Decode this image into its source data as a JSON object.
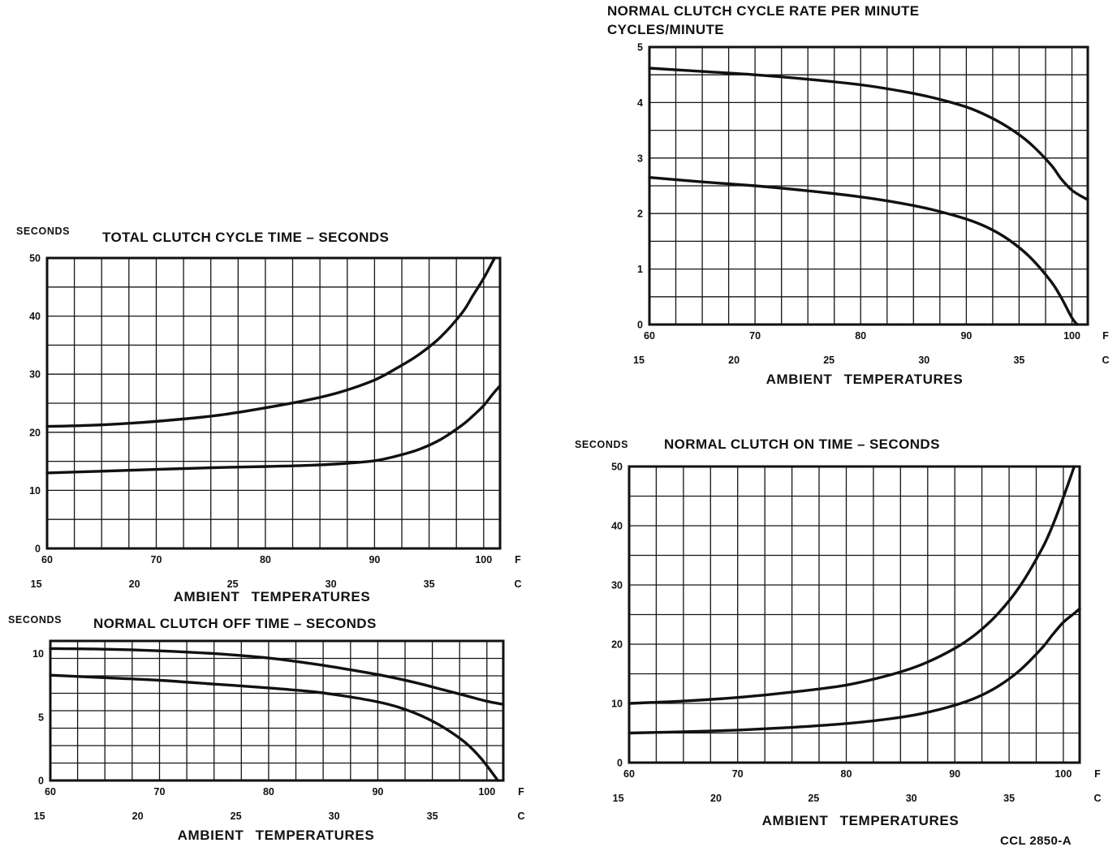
{
  "page": {
    "footer_code": "CCL 2850-A"
  },
  "chart_data": [
    {
      "id": "total-clutch-cycle-time",
      "type": "line",
      "title": "TOTAL CLUTCH CYCLE TIME – SECONDS",
      "y_unit_label": "SECONDS",
      "xlabel": "AMBIENT TEMPERATURES",
      "grid": true,
      "x_ticks_f": [
        60,
        70,
        80,
        90,
        100
      ],
      "x_unit_f": "F",
      "x_ticks_c": [
        15,
        20,
        25,
        30,
        35
      ],
      "x_unit_c": "C",
      "xlim_f": [
        60,
        101.5
      ],
      "x_grid_step_f": 2.5,
      "ylim": [
        0,
        50
      ],
      "y_ticks": [
        0,
        10,
        20,
        30,
        40,
        50
      ],
      "y_grid_divisions": 10,
      "series": [
        {
          "name": "upper-curve",
          "points_f_value": [
            [
              60,
              21
            ],
            [
              64,
              21.2
            ],
            [
              68,
              21.6
            ],
            [
              72,
              22.2
            ],
            [
              76,
              23
            ],
            [
              80,
              24.2
            ],
            [
              84,
              25.6
            ],
            [
              87,
              27
            ],
            [
              90,
              29
            ],
            [
              92,
              31
            ],
            [
              94,
              33.3
            ],
            [
              96,
              36.3
            ],
            [
              98,
              40.5
            ],
            [
              99,
              43.5
            ],
            [
              100,
              46.5
            ],
            [
              101,
              50
            ]
          ]
        },
        {
          "name": "lower-curve",
          "points_f_value": [
            [
              60,
              13
            ],
            [
              65,
              13.3
            ],
            [
              70,
              13.6
            ],
            [
              75,
              13.9
            ],
            [
              80,
              14.1
            ],
            [
              84,
              14.3
            ],
            [
              87,
              14.6
            ],
            [
              90,
              15.1
            ],
            [
              92,
              15.9
            ],
            [
              94,
              17
            ],
            [
              96,
              18.7
            ],
            [
              98,
              21.2
            ],
            [
              99,
              22.8
            ],
            [
              100,
              24.6
            ],
            [
              100.8,
              26.5
            ],
            [
              101.5,
              28
            ]
          ]
        }
      ]
    },
    {
      "id": "normal-clutch-cycle-rate",
      "type": "line",
      "title": "NORMAL CLUTCH CYCLE RATE PER MINUTE",
      "title_line2": "CYCLES/MINUTE",
      "xlabel": "AMBIENT TEMPERATURES",
      "grid": true,
      "x_ticks_f": [
        60,
        70,
        80,
        90,
        100
      ],
      "x_unit_f": "F",
      "x_ticks_c": [
        15,
        20,
        25,
        30,
        35
      ],
      "x_unit_c": "C",
      "xlim_f": [
        60,
        101.5
      ],
      "x_grid_step_f": 2.5,
      "ylim": [
        0,
        5
      ],
      "y_ticks": [
        0,
        1,
        2,
        3,
        4,
        5
      ],
      "y_grid_divisions": 10,
      "series": [
        {
          "name": "upper-curve",
          "points_f_value": [
            [
              60,
              4.62
            ],
            [
              65,
              4.56
            ],
            [
              70,
              4.5
            ],
            [
              75,
              4.42
            ],
            [
              80,
              4.32
            ],
            [
              84,
              4.2
            ],
            [
              87,
              4.08
            ],
            [
              90,
              3.92
            ],
            [
              92,
              3.76
            ],
            [
              94,
              3.55
            ],
            [
              96,
              3.27
            ],
            [
              98,
              2.88
            ],
            [
              99,
              2.62
            ],
            [
              100,
              2.42
            ],
            [
              101,
              2.3
            ],
            [
              101.5,
              2.25
            ]
          ]
        },
        {
          "name": "lower-curve",
          "points_f_value": [
            [
              60,
              2.65
            ],
            [
              65,
              2.57
            ],
            [
              70,
              2.5
            ],
            [
              75,
              2.41
            ],
            [
              80,
              2.3
            ],
            [
              84,
              2.18
            ],
            [
              87,
              2.06
            ],
            [
              90,
              1.9
            ],
            [
              92,
              1.75
            ],
            [
              94,
              1.53
            ],
            [
              96,
              1.22
            ],
            [
              98,
              0.78
            ],
            [
              99,
              0.48
            ],
            [
              100,
              0.12
            ],
            [
              100.5,
              0
            ]
          ]
        }
      ]
    },
    {
      "id": "normal-clutch-off-time",
      "type": "line",
      "title": "NORMAL CLUTCH OFF TIME – SECONDS",
      "y_unit_label": "SECONDS",
      "xlabel": "AMBIENT TEMPERATURES",
      "grid": true,
      "x_ticks_f": [
        60,
        70,
        80,
        90,
        100
      ],
      "x_unit_f": "F",
      "x_ticks_c": [
        15,
        20,
        25,
        30,
        35
      ],
      "x_unit_c": "C",
      "xlim_f": [
        60,
        101.5
      ],
      "x_grid_step_f": 2.5,
      "ylim": [
        0,
        11
      ],
      "y_ticks": [
        0,
        5,
        10
      ],
      "y_grid_divisions": 8,
      "series": [
        {
          "name": "upper-curve",
          "points_f_value": [
            [
              60,
              10.4
            ],
            [
              65,
              10.35
            ],
            [
              70,
              10.22
            ],
            [
              75,
              10.0
            ],
            [
              80,
              9.65
            ],
            [
              84,
              9.2
            ],
            [
              87,
              8.8
            ],
            [
              90,
              8.35
            ],
            [
              92,
              8.0
            ],
            [
              94,
              7.6
            ],
            [
              96,
              7.15
            ],
            [
              98,
              6.7
            ],
            [
              100,
              6.25
            ],
            [
              101.5,
              6.0
            ]
          ]
        },
        {
          "name": "lower-curve",
          "points_f_value": [
            [
              60,
              8.3
            ],
            [
              65,
              8.1
            ],
            [
              70,
              7.9
            ],
            [
              75,
              7.6
            ],
            [
              80,
              7.3
            ],
            [
              84,
              7.0
            ],
            [
              87,
              6.65
            ],
            [
              90,
              6.2
            ],
            [
              92,
              5.75
            ],
            [
              94,
              5.1
            ],
            [
              96,
              4.2
            ],
            [
              98,
              3.0
            ],
            [
              99.5,
              1.7
            ],
            [
              101,
              0
            ]
          ]
        }
      ]
    },
    {
      "id": "normal-clutch-on-time",
      "type": "line",
      "title": "NORMAL CLUTCH ON TIME – SECONDS",
      "y_unit_label": "SECONDS",
      "xlabel": "AMBIENT TEMPERATURES",
      "grid": true,
      "x_ticks_f": [
        60,
        70,
        80,
        90,
        100
      ],
      "x_unit_f": "F",
      "x_ticks_c": [
        15,
        20,
        25,
        30,
        35
      ],
      "x_unit_c": "C",
      "xlim_f": [
        60,
        101.5
      ],
      "x_grid_step_f": 2.5,
      "ylim": [
        0,
        50
      ],
      "y_ticks": [
        0,
        10,
        20,
        30,
        40,
        50
      ],
      "y_grid_divisions": 10,
      "series": [
        {
          "name": "upper-curve",
          "points_f_value": [
            [
              60,
              10
            ],
            [
              65,
              10.4
            ],
            [
              70,
              11
            ],
            [
              75,
              11.9
            ],
            [
              80,
              13.1
            ],
            [
              84,
              14.8
            ],
            [
              87,
              16.6
            ],
            [
              90,
              19.3
            ],
            [
              92,
              21.8
            ],
            [
              94,
              25.2
            ],
            [
              96,
              29.8
            ],
            [
              98,
              36
            ],
            [
              99,
              40
            ],
            [
              100,
              44.8
            ],
            [
              101,
              50
            ]
          ]
        },
        {
          "name": "lower-curve",
          "points_f_value": [
            [
              60,
              5
            ],
            [
              65,
              5.2
            ],
            [
              70,
              5.5
            ],
            [
              75,
              5.95
            ],
            [
              80,
              6.6
            ],
            [
              84,
              7.4
            ],
            [
              87,
              8.3
            ],
            [
              90,
              9.7
            ],
            [
              92,
              11
            ],
            [
              94,
              12.9
            ],
            [
              96,
              15.6
            ],
            [
              98,
              19.3
            ],
            [
              99,
              21.6
            ],
            [
              100,
              23.7
            ],
            [
              101,
              25.2
            ],
            [
              101.5,
              26
            ]
          ]
        }
      ]
    }
  ]
}
